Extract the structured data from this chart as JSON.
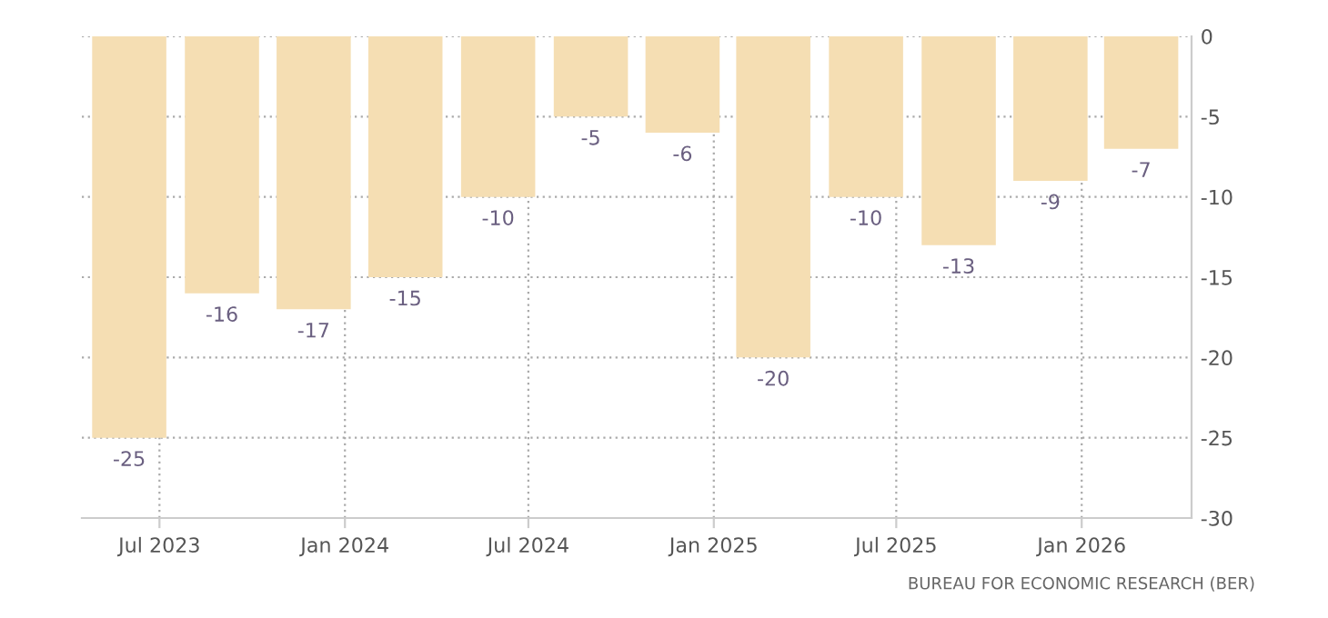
{
  "chart_data": {
    "type": "bar",
    "x": [
      "2023-06",
      "2023-09",
      "2023-12",
      "2024-03",
      "2024-06",
      "2024-09",
      "2024-12",
      "2025-03",
      "2025-06",
      "2025-09",
      "2025-12",
      "2026-03"
    ],
    "values": [
      -25,
      -16,
      -17,
      -15,
      -10,
      -5,
      -6,
      -20,
      -10,
      -13,
      -9,
      -7
    ],
    "color": "#f5deb3",
    "data_labels": true,
    "grid": true,
    "legend": false,
    "ylim": [
      -30,
      0
    ],
    "yticks": [
      -30,
      -25,
      -20,
      -15,
      -10,
      -5,
      0
    ],
    "xlim": [
      "2023-04-15",
      "2026-04-20"
    ],
    "xticks": [
      {
        "value": "2023-07",
        "label": "Jul 2023"
      },
      {
        "value": "2024-01",
        "label": "Jan 2024"
      },
      {
        "value": "2024-07",
        "label": "Jul 2024"
      },
      {
        "value": "2025-01",
        "label": "Jan 2025"
      },
      {
        "value": "2025-07",
        "label": "Jul 2025"
      },
      {
        "value": "2026-01",
        "label": "Jan 2026"
      }
    ],
    "annotations": [
      "BUREAU FOR ECONOMIC RESEARCH (BER)"
    ]
  }
}
